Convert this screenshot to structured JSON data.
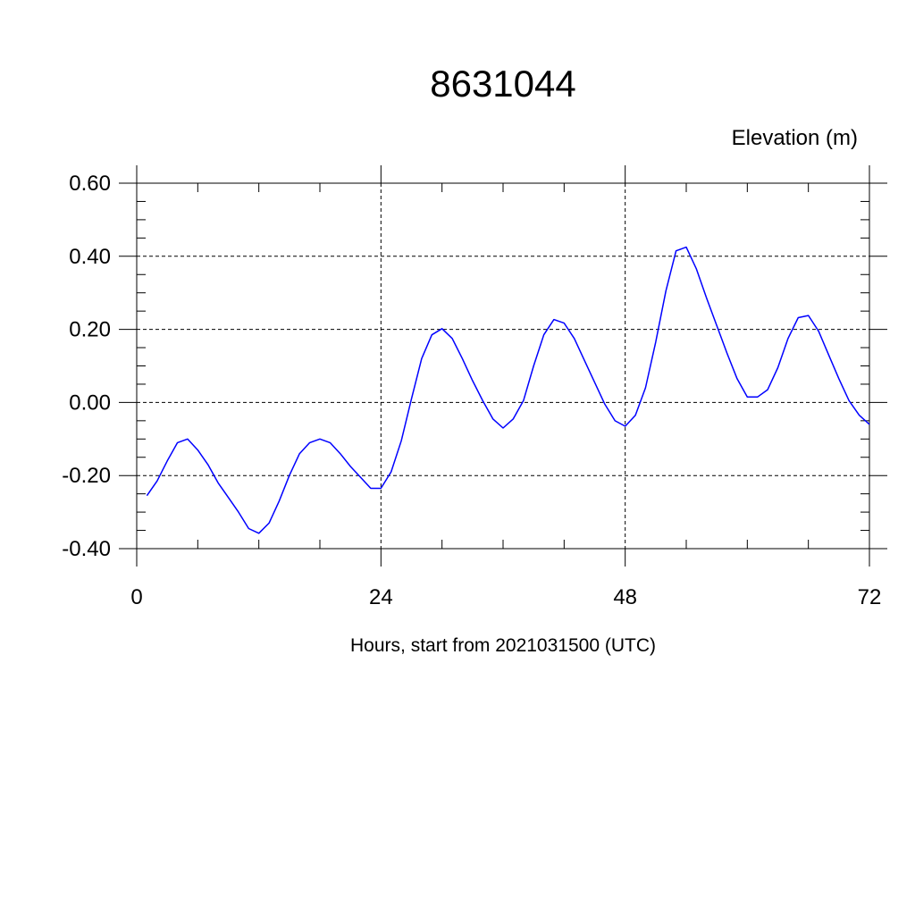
{
  "chart_data": {
    "type": "line",
    "title": "8631044",
    "ylabel": "Elevation (m)",
    "xlabel": "Hours, start from 2021031500 (UTC)",
    "xlim": [
      0,
      72
    ],
    "ylim": [
      -0.4,
      0.6
    ],
    "x_ticks": [
      0,
      24,
      48,
      72
    ],
    "x_tick_labels": [
      "0",
      "24",
      "48",
      "72"
    ],
    "y_ticks": [
      -0.4,
      -0.2,
      0.0,
      0.2,
      0.4,
      0.6
    ],
    "y_tick_labels": [
      "-0.40",
      "-0.20",
      "0.00",
      "0.20",
      "0.40",
      "0.60"
    ],
    "grid": true,
    "series": [
      {
        "color": "#0000ff",
        "x": [
          1,
          2,
          3,
          4,
          5,
          6,
          7,
          8,
          9,
          10,
          11,
          12,
          13,
          14,
          15,
          16,
          17,
          18,
          19,
          20,
          21,
          22,
          23,
          24,
          25,
          26,
          27,
          28,
          29,
          30,
          31,
          32,
          33,
          34,
          35,
          36,
          37,
          38,
          39,
          40,
          41,
          42,
          43,
          44,
          45,
          46,
          47,
          48,
          49,
          50,
          51,
          52,
          53,
          54,
          55,
          56,
          57,
          58,
          59,
          60,
          61,
          62,
          63,
          64,
          65,
          66,
          67,
          68,
          69,
          70,
          71,
          72
        ],
        "y": [
          -0.255,
          -0.215,
          -0.16,
          -0.11,
          -0.1,
          -0.13,
          -0.17,
          -0.22,
          -0.26,
          -0.3,
          -0.345,
          -0.358,
          -0.33,
          -0.27,
          -0.2,
          -0.14,
          -0.11,
          -0.1,
          -0.11,
          -0.14,
          -0.175,
          -0.205,
          -0.235,
          -0.235,
          -0.19,
          -0.105,
          0.01,
          0.12,
          0.185,
          0.202,
          0.175,
          0.12,
          0.06,
          0.005,
          -0.045,
          -0.07,
          -0.045,
          0.005,
          0.1,
          0.185,
          0.227,
          0.217,
          0.175,
          0.115,
          0.055,
          -0.005,
          -0.05,
          -0.065,
          -0.035,
          0.04,
          0.165,
          0.305,
          0.415,
          0.425,
          0.365,
          0.285,
          0.21,
          0.135,
          0.065,
          0.015,
          0.015,
          0.035,
          0.095,
          0.175,
          0.232,
          0.238,
          0.195,
          0.13,
          0.065,
          0.005,
          -0.035,
          -0.06
        ]
      }
    ]
  }
}
